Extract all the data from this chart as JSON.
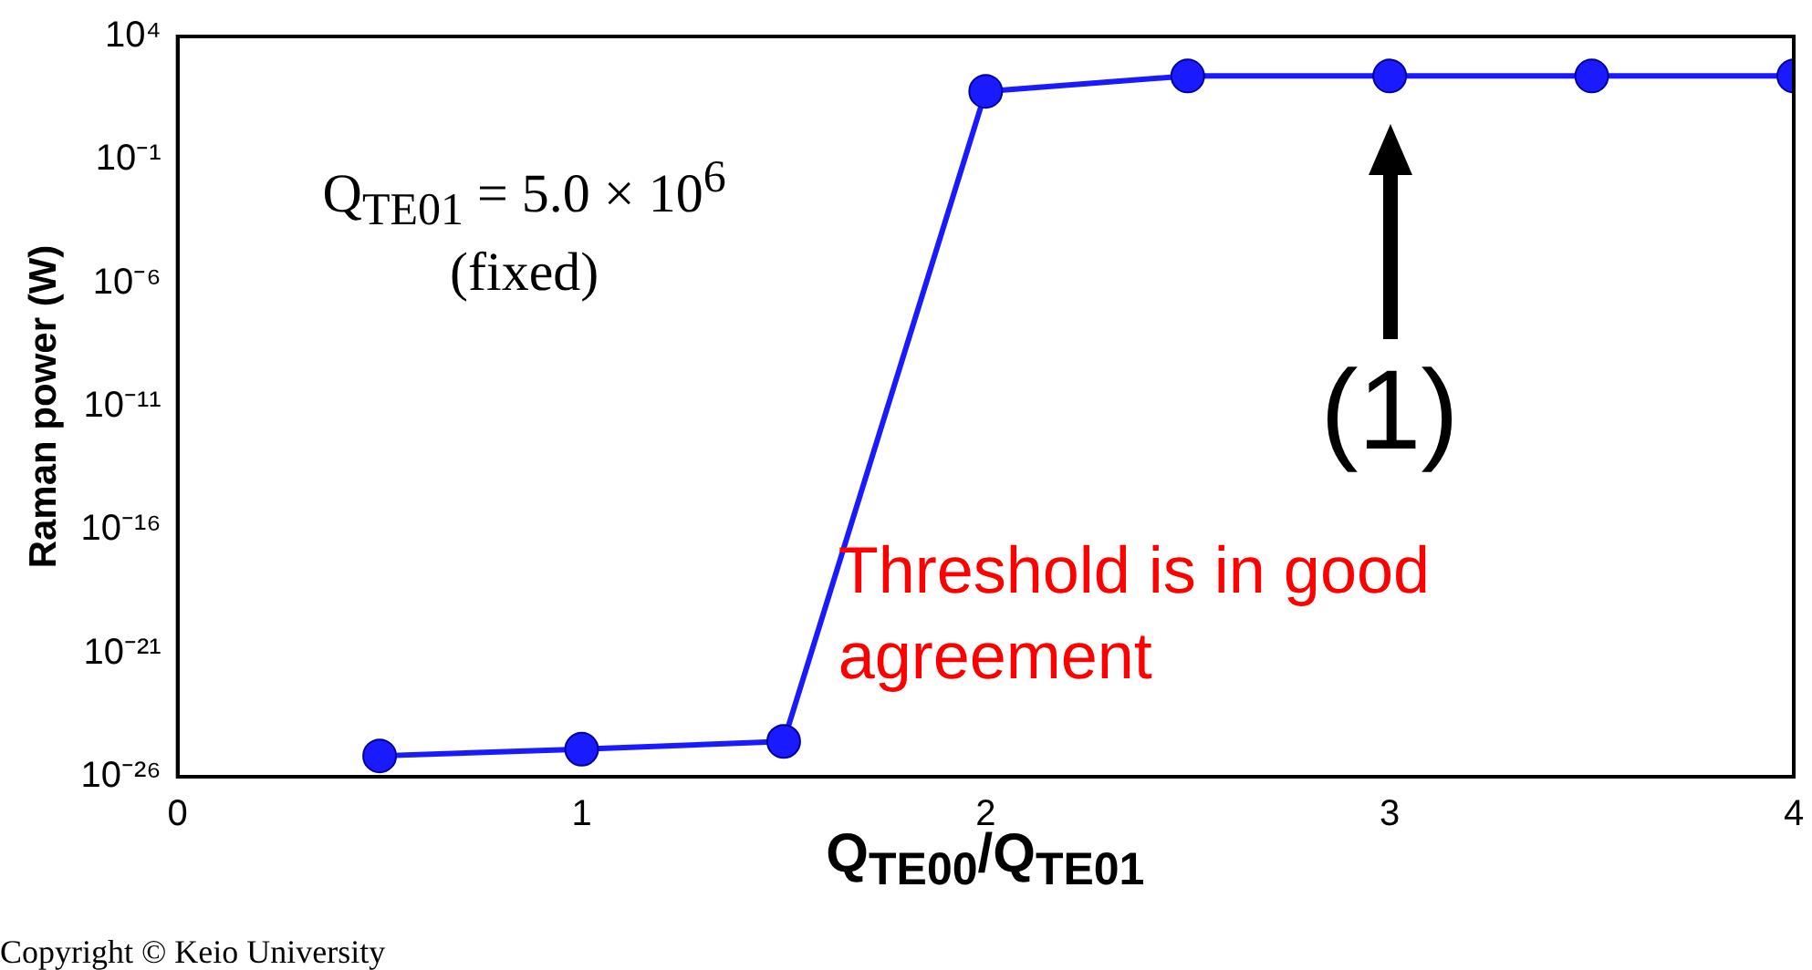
{
  "chart_data": {
    "type": "line",
    "xlabel": "Q$_{TE00}$/Q$_{TE01}$",
    "ylabel": "Raman power (W)",
    "x": [
      0.5,
      1,
      1.5,
      2,
      2.5,
      3,
      3.5,
      4
    ],
    "series": [
      {
        "color": "#1a1aff",
        "values": [
          7e-26,
          1.3e-25,
          2.7e-25,
          60,
          250,
          250,
          250,
          250
        ]
      }
    ],
    "xlim": [
      0,
      4
    ],
    "xticks": [
      0,
      1,
      2,
      3,
      4
    ],
    "ylim": [
      1e-26,
      10000.0
    ],
    "yticks": [
      {
        "value": 1e-26,
        "label": "10⁻²⁶"
      },
      {
        "value": 1e-21,
        "label": "10⁻²¹"
      },
      {
        "value": 1e-16,
        "label": "10⁻¹⁶"
      },
      {
        "value": 1e-11,
        "label": "10⁻¹¹"
      },
      {
        "value": 1e-06,
        "label": "10⁻⁶"
      },
      {
        "value": 0.1,
        "label": "10⁻¹"
      },
      {
        "value": 10000.0,
        "label": "10⁴"
      }
    ],
    "log": "y",
    "grid": false,
    "marker": "circle",
    "line_style": "solid",
    "annotations": [
      "Q$_{TE01}$ = 5.0 × 10$^{6}$ (fixed)",
      "Threshold is in good agreement",
      {
        "text": "(1)",
        "x": 3,
        "y": 250
      },
      "Copyright © Keio University"
    ]
  }
}
